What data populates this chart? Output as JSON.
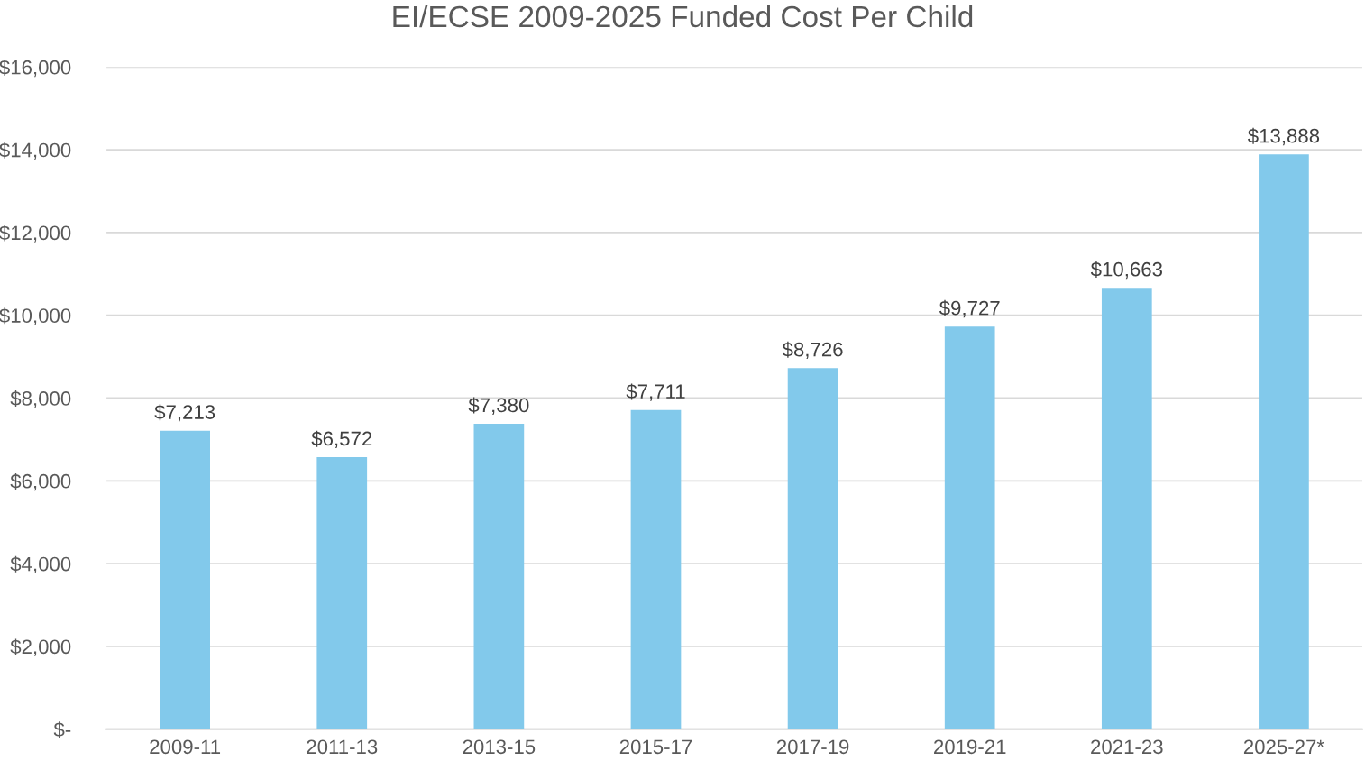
{
  "chart_data": {
    "type": "bar",
    "title": "EI/ECSE 2009-2025 Funded Cost Per Child",
    "categories": [
      "2009-11",
      "2011-13",
      "2013-15",
      "2015-17",
      "2017-19",
      "2019-21",
      "2021-23",
      "2025-27*"
    ],
    "values": [
      7213,
      6572,
      7380,
      7711,
      8726,
      9727,
      10663,
      13888
    ],
    "value_labels": [
      "$7,213",
      "$6,572",
      "$7,380",
      "$7,711",
      "$8,726",
      "$9,727",
      "$10,663",
      "$13,888"
    ],
    "color": "#82c9eb",
    "ylim": [
      0,
      16000
    ],
    "yticks": [
      {
        "value": 0,
        "label": "$-"
      },
      {
        "value": 2000,
        "label": "$2,000"
      },
      {
        "value": 4000,
        "label": "$4,000"
      },
      {
        "value": 6000,
        "label": "$6,000"
      },
      {
        "value": 8000,
        "label": "$8,000"
      },
      {
        "value": 10000,
        "label": "$10,000"
      },
      {
        "value": 12000,
        "label": "$12,000"
      },
      {
        "value": 14000,
        "label": "$14,000"
      },
      {
        "value": 16000,
        "label": "$16,000"
      }
    ],
    "grid": "y",
    "legend": false
  }
}
